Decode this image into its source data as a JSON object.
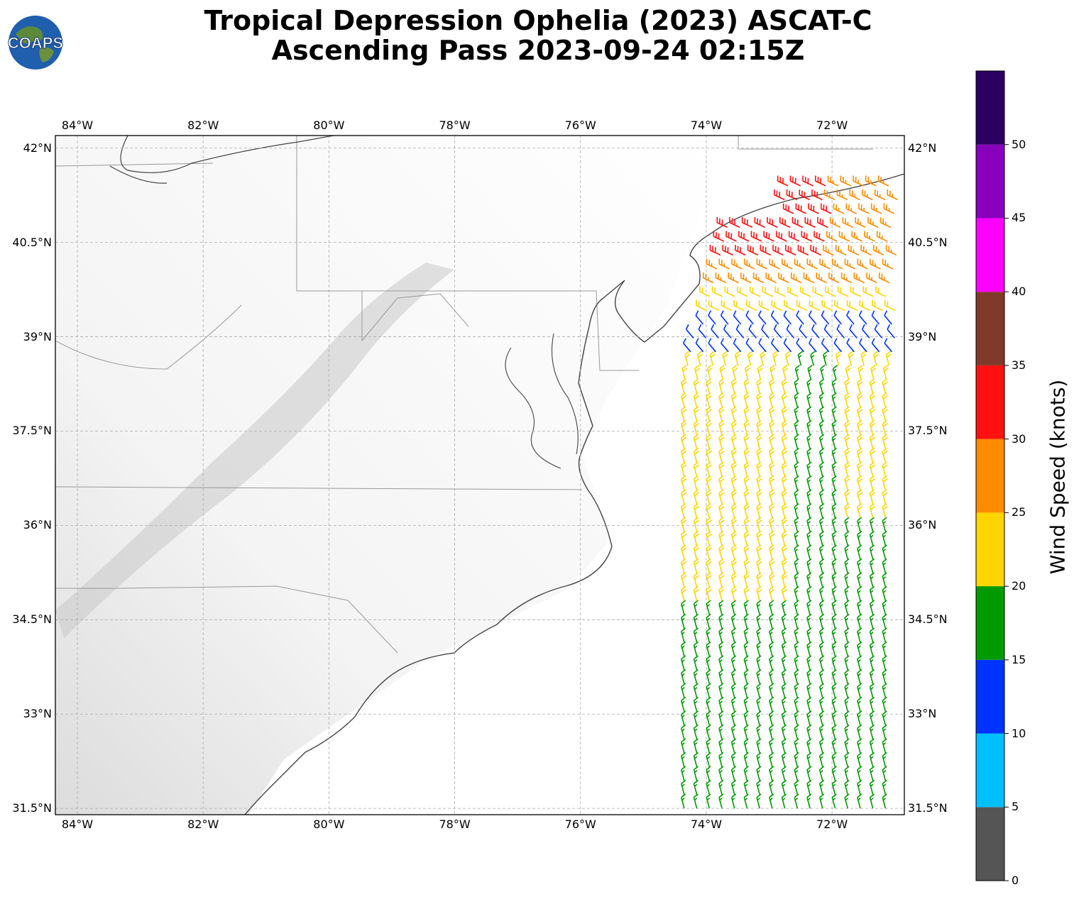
{
  "title": {
    "line1": "Tropical Depression Ophelia (2023) ASCAT-C",
    "line2": "Ascending Pass 2023-09-24 02:15Z"
  },
  "logo": {
    "text": "COAPS"
  },
  "map": {
    "lon_range": [
      -84.35,
      -70.85
    ],
    "lat_range": [
      31.4,
      42.2
    ],
    "lon_ticks": [
      "84°W",
      "82°W",
      "80°W",
      "78°W",
      "76°W",
      "74°W",
      "72°W"
    ],
    "lat_ticks": [
      "42°N",
      "40.5°N",
      "39°N",
      "37.5°N",
      "36°N",
      "34.5°N",
      "33°N",
      "31.5°N"
    ],
    "gridlines": true,
    "background": "grayscale terrain"
  },
  "colorbar": {
    "label": "Wind Speed (knots)",
    "ticks": [
      "0",
      "5",
      "10",
      "15",
      "20",
      "25",
      "30",
      "35",
      "40",
      "45",
      "50"
    ],
    "bins": [
      {
        "min": 0,
        "max": 5,
        "color": "#555555"
      },
      {
        "min": 5,
        "max": 10,
        "color": "#00bfff"
      },
      {
        "min": 10,
        "max": 15,
        "color": "#0033ff"
      },
      {
        "min": 15,
        "max": 20,
        "color": "#009900"
      },
      {
        "min": 20,
        "max": 25,
        "color": "#ffd500"
      },
      {
        "min": 25,
        "max": 30,
        "color": "#ff8c00"
      },
      {
        "min": 30,
        "max": 35,
        "color": "#ff1111"
      },
      {
        "min": 35,
        "max": 40,
        "color": "#803a2a"
      },
      {
        "min": 40,
        "max": 45,
        "color": "#ff00ff"
      },
      {
        "min": 45,
        "max": 50,
        "color": "#8800bb"
      },
      {
        "min": 50,
        "max": 55,
        "color": "#2a0060"
      }
    ]
  },
  "wind_zones": [
    {
      "lat_min": 40.3,
      "lat_max": 41.3,
      "speed": 32
    },
    {
      "lat_min": 39.8,
      "lat_max": 41.5,
      "speed": 27
    },
    {
      "lat_min": 39.2,
      "lat_max": 39.9,
      "speed": 22
    },
    {
      "lat_min": 38.6,
      "lat_max": 39.3,
      "speed": 13
    },
    {
      "lat_min": 34.6,
      "lat_max": 38.3,
      "speed": 22
    },
    {
      "lat_min": 31.4,
      "lat_max": 38.6,
      "speed": 18
    }
  ]
}
